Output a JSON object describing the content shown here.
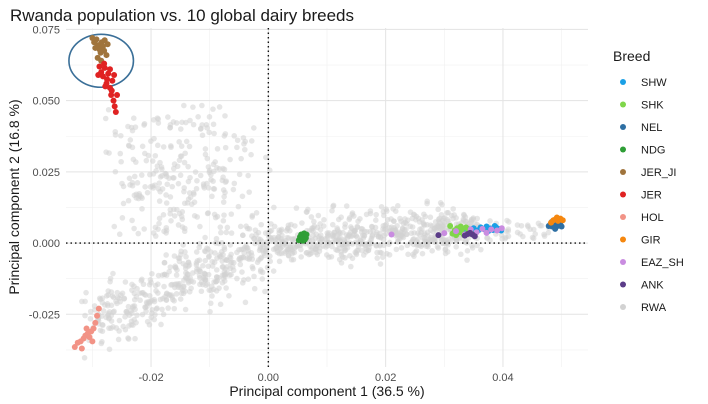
{
  "chart_data": {
    "type": "scatter",
    "title": "Rwanda population vs. 10 global dairy breeds",
    "xlabel": "Principal component 1 (36.5 %)",
    "ylabel": "Principal component 2 (16.8 %)",
    "xlim": [
      -0.0345,
      0.0545
    ],
    "ylim": [
      -0.0435,
      0.0755
    ],
    "xticks": [
      -0.02,
      0.0,
      0.02,
      0.04
    ],
    "xtick_labels": [
      "-0.02",
      "0.00",
      "0.02",
      "0.04"
    ],
    "yticks": [
      -0.025,
      0.0,
      0.025,
      0.05,
      0.075
    ],
    "ytick_labels": [
      "-0.025",
      "0.000",
      "0.025",
      "0.050",
      "0.075"
    ],
    "grid": true,
    "reference_lines": {
      "x": 0,
      "y": 0,
      "style": "dotted"
    },
    "highlight_ellipse": {
      "cx": -0.0285,
      "cy": 0.064,
      "rx": 0.0055,
      "ry": 0.0093
    },
    "legend": {
      "title": "Breed",
      "placement": "right"
    },
    "series": [
      {
        "name": "SHW",
        "color": "#1aa0e6",
        "points": [
          [
            0.0335,
            0.0043
          ],
          [
            0.0342,
            0.0048
          ],
          [
            0.035,
            0.0052
          ],
          [
            0.0358,
            0.0045
          ],
          [
            0.0362,
            0.0055
          ],
          [
            0.0368,
            0.0049
          ],
          [
            0.0372,
            0.0058
          ],
          [
            0.0378,
            0.0051
          ],
          [
            0.0383,
            0.0046
          ],
          [
            0.0388,
            0.0056
          ],
          [
            0.0393,
            0.005
          ],
          [
            0.0397,
            0.0044
          ],
          [
            0.0346,
            0.004
          ],
          [
            0.0375,
            0.0042
          ],
          [
            0.0386,
            0.006
          ]
        ]
      },
      {
        "name": "SHK",
        "color": "#7fd64a",
        "points": [
          [
            0.031,
            0.006
          ],
          [
            0.0314,
            0.0033
          ],
          [
            0.0318,
            0.0045
          ],
          [
            0.0322,
            0.0052
          ],
          [
            0.0326,
            0.0038
          ],
          [
            0.033,
            0.0048
          ],
          [
            0.0333,
            0.003
          ],
          [
            0.0337,
            0.0055
          ],
          [
            0.0341,
            0.0042
          ],
          [
            0.0345,
            0.0036
          ],
          [
            0.032,
            0.0028
          ],
          [
            0.0328,
            0.0058
          ]
        ]
      },
      {
        "name": "NEL",
        "color": "#2e6fa3",
        "points": [
          [
            0.0478,
            0.006
          ],
          [
            0.0481,
            0.0066
          ],
          [
            0.0484,
            0.0058
          ],
          [
            0.0486,
            0.007
          ],
          [
            0.0488,
            0.0063
          ],
          [
            0.049,
            0.0055
          ],
          [
            0.0492,
            0.0068
          ],
          [
            0.0494,
            0.0061
          ],
          [
            0.0496,
            0.0072
          ],
          [
            0.0498,
            0.0064
          ],
          [
            0.05,
            0.0058
          ],
          [
            0.0483,
            0.0074
          ],
          [
            0.0489,
            0.005
          ],
          [
            0.0495,
            0.0076
          ],
          [
            0.0487,
            0.0067
          ]
        ]
      },
      {
        "name": "NDG",
        "color": "#2f9e36",
        "points": [
          [
            0.0052,
            0.001
          ],
          [
            0.0054,
            0.0022
          ],
          [
            0.0056,
            0.003
          ],
          [
            0.0057,
            0.0015
          ],
          [
            0.0058,
            0.0026
          ],
          [
            0.0059,
            0.0008
          ],
          [
            0.006,
            0.002
          ],
          [
            0.0061,
            0.0034
          ],
          [
            0.0062,
            0.0012
          ],
          [
            0.0063,
            0.0025
          ],
          [
            0.0064,
            0.0018
          ],
          [
            0.0065,
            0.003
          ]
        ]
      },
      {
        "name": "JER_JI",
        "color": "#a0743c",
        "points": [
          [
            -0.03,
            0.072
          ],
          [
            -0.0297,
            0.0705
          ],
          [
            -0.0293,
            0.0715
          ],
          [
            -0.029,
            0.0695
          ],
          [
            -0.0288,
            0.068
          ],
          [
            -0.0286,
            0.0668
          ],
          [
            -0.0284,
            0.0705
          ],
          [
            -0.0282,
            0.069
          ],
          [
            -0.028,
            0.0675
          ],
          [
            -0.0279,
            0.0712
          ],
          [
            -0.0276,
            0.066
          ],
          [
            -0.0274,
            0.0698
          ],
          [
            -0.0291,
            0.065
          ],
          [
            -0.0285,
            0.064
          ],
          [
            -0.0295,
            0.0685
          ]
        ]
      },
      {
        "name": "JER",
        "color": "#e02222",
        "points": [
          [
            -0.0288,
            0.062
          ],
          [
            -0.0285,
            0.06
          ],
          [
            -0.0282,
            0.0585
          ],
          [
            -0.0279,
            0.0615
          ],
          [
            -0.0276,
            0.056
          ],
          [
            -0.0273,
            0.0595
          ],
          [
            -0.027,
            0.0545
          ],
          [
            -0.0268,
            0.052
          ],
          [
            -0.0266,
            0.057
          ],
          [
            -0.0264,
            0.05
          ],
          [
            -0.0262,
            0.048
          ],
          [
            -0.026,
            0.046
          ],
          [
            -0.028,
            0.063
          ],
          [
            -0.027,
            0.061
          ],
          [
            -0.029,
            0.059
          ],
          [
            -0.0275,
            0.0575
          ],
          [
            -0.0267,
            0.0535
          ],
          [
            -0.0263,
            0.059
          ],
          [
            -0.0278,
            0.055
          ],
          [
            -0.0258,
            0.052
          ]
        ]
      },
      {
        "name": "HOL",
        "color": "#f29386",
        "points": [
          [
            -0.033,
            -0.0365
          ],
          [
            -0.0325,
            -0.035
          ],
          [
            -0.032,
            -0.0345
          ],
          [
            -0.0315,
            -0.0335
          ],
          [
            -0.0312,
            -0.0325
          ],
          [
            -0.0308,
            -0.0318
          ],
          [
            -0.0305,
            -0.033
          ],
          [
            -0.0302,
            -0.031
          ],
          [
            -0.0298,
            -0.03
          ],
          [
            -0.0295,
            -0.028
          ],
          [
            -0.0292,
            -0.0255
          ],
          [
            -0.0289,
            -0.023
          ],
          [
            -0.0318,
            -0.037
          ],
          [
            -0.03,
            -0.0345
          ],
          [
            -0.031,
            -0.03
          ]
        ]
      },
      {
        "name": "GIR",
        "color": "#f5870f",
        "points": [
          [
            0.0482,
            0.0072
          ],
          [
            0.0486,
            0.008
          ],
          [
            0.049,
            0.0084
          ],
          [
            0.0494,
            0.0078
          ],
          [
            0.0498,
            0.0086
          ],
          [
            0.0502,
            0.008
          ],
          [
            0.0492,
            0.009
          ]
        ]
      },
      {
        "name": "EAZ_SH",
        "color": "#c98ce0",
        "points": [
          [
            0.021,
            0.003
          ],
          [
            0.03,
            0.0035
          ],
          [
            0.032,
            0.0042
          ],
          [
            0.0355,
            0.0038
          ],
          [
            0.0365,
            0.005
          ],
          [
            0.038,
            0.0048
          ],
          [
            0.039,
            0.0044
          ],
          [
            0.0345,
            0.0048
          ],
          [
            0.0372,
            0.0036
          ],
          [
            0.0335,
            0.003
          ],
          [
            0.0398,
            0.0052
          ]
        ]
      },
      {
        "name": "ANK",
        "color": "#5b3c88",
        "points": [
          [
            0.029,
            0.0028
          ],
          [
            0.0335,
            0.0026
          ],
          [
            0.034,
            0.0032
          ],
          [
            0.0348,
            0.003
          ],
          [
            0.0352,
            0.0024
          ],
          [
            0.0344,
            0.0036
          ]
        ]
      },
      {
        "name": "RWA",
        "color": "#d2d2d2",
        "generated": true
      }
    ]
  }
}
